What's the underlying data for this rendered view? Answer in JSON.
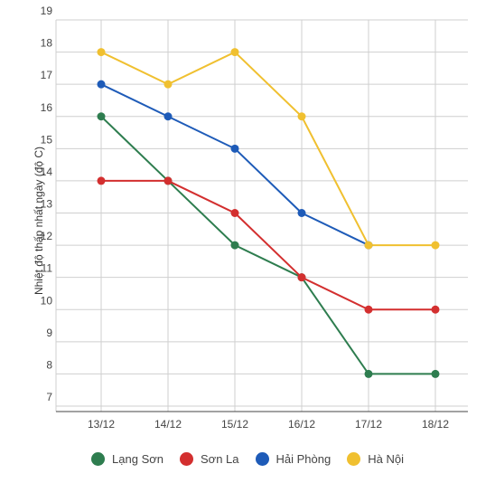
{
  "chart_data": {
    "type": "line",
    "title": "",
    "xlabel": "",
    "ylabel": "Nhiệt độ thấp nhất ngày (độ C)",
    "categories": [
      "13/12",
      "14/12",
      "15/12",
      "16/12",
      "17/12",
      "18/12"
    ],
    "ylim": [
      7,
      19
    ],
    "yticks": [
      7,
      8,
      9,
      10,
      11,
      12,
      13,
      14,
      15,
      16,
      17,
      18,
      19
    ],
    "grid": true,
    "legend_position": "bottom",
    "series": [
      {
        "name": "Lạng Sơn",
        "color": "#2e7d4f",
        "values": [
          16,
          14,
          12,
          11,
          8,
          8
        ]
      },
      {
        "name": "Sơn La",
        "color": "#d32f2f",
        "values": [
          14,
          14,
          13,
          11,
          10,
          10
        ]
      },
      {
        "name": "Hải Phòng",
        "color": "#1e5bb8",
        "values": [
          17,
          16,
          15,
          13,
          12,
          null
        ]
      },
      {
        "name": "Hà Nội",
        "color": "#f0c030",
        "values": [
          18,
          17,
          18,
          16,
          12,
          12
        ]
      }
    ]
  }
}
